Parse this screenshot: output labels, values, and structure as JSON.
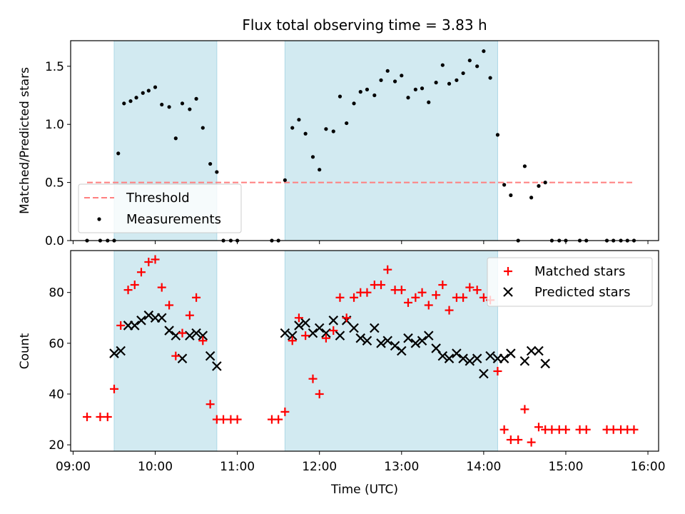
{
  "chart_data": [
    {
      "type": "scatter",
      "title": "Flux total observing time = 3.83 h",
      "ylabel": "Matched/Predicted stars",
      "xlabel": "",
      "xlim_hours": [
        8.97,
        16.13
      ],
      "ylim": [
        0,
        1.72
      ],
      "yticks": [
        0.0,
        0.5,
        1.0,
        1.5
      ],
      "ytick_labels": [
        "0.0",
        "0.5",
        "1.0",
        "1.5"
      ],
      "xtick_labels_shown": false,
      "shaded_intervals_hours": [
        [
          9.5,
          10.75
        ],
        [
          11.58,
          14.17
        ]
      ],
      "shade_color": "#add8e6",
      "legend": {
        "placement": "lower-left",
        "entries": [
          "Threshold",
          "Measurements"
        ]
      },
      "threshold": {
        "name": "Threshold",
        "value": 0.5,
        "x_start": 9.17,
        "x_end": 15.83,
        "color": "#ff7f7f",
        "style": "dashed"
      },
      "series": [
        {
          "name": "Measurements",
          "marker": "dot",
          "color": "#000000",
          "points": [
            [
              9.17,
              0
            ],
            [
              9.33,
              0
            ],
            [
              9.42,
              0
            ],
            [
              9.5,
              0
            ],
            [
              9.55,
              0.75
            ],
            [
              9.62,
              1.18
            ],
            [
              9.7,
              1.2
            ],
            [
              9.77,
              1.23
            ],
            [
              9.85,
              1.27
            ],
            [
              9.92,
              1.29
            ],
            [
              10.0,
              1.32
            ],
            [
              10.08,
              1.17
            ],
            [
              10.17,
              1.15
            ],
            [
              10.25,
              0.88
            ],
            [
              10.33,
              1.18
            ],
            [
              10.42,
              1.13
            ],
            [
              10.5,
              1.22
            ],
            [
              10.58,
              0.97
            ],
            [
              10.67,
              0.66
            ],
            [
              10.75,
              0.59
            ],
            [
              10.83,
              0
            ],
            [
              10.92,
              0
            ],
            [
              11.0,
              0
            ],
            [
              11.42,
              0
            ],
            [
              11.5,
              0
            ],
            [
              11.58,
              0.52
            ],
            [
              11.67,
              0.97
            ],
            [
              11.75,
              1.04
            ],
            [
              11.83,
              0.92
            ],
            [
              11.92,
              0.72
            ],
            [
              12.0,
              0.61
            ],
            [
              12.08,
              0.96
            ],
            [
              12.17,
              0.94
            ],
            [
              12.25,
              1.24
            ],
            [
              12.33,
              1.01
            ],
            [
              12.42,
              1.18
            ],
            [
              12.5,
              1.28
            ],
            [
              12.58,
              1.3
            ],
            [
              12.67,
              1.25
            ],
            [
              12.75,
              1.38
            ],
            [
              12.83,
              1.46
            ],
            [
              12.92,
              1.37
            ],
            [
              13.0,
              1.42
            ],
            [
              13.08,
              1.23
            ],
            [
              13.17,
              1.3
            ],
            [
              13.25,
              1.31
            ],
            [
              13.33,
              1.19
            ],
            [
              13.42,
              1.36
            ],
            [
              13.5,
              1.51
            ],
            [
              13.58,
              1.35
            ],
            [
              13.67,
              1.38
            ],
            [
              13.75,
              1.44
            ],
            [
              13.83,
              1.55
            ],
            [
              13.92,
              1.5
            ],
            [
              14.0,
              1.63
            ],
            [
              14.08,
              1.4
            ],
            [
              14.17,
              0.91
            ],
            [
              14.25,
              0.48
            ],
            [
              14.33,
              0.39
            ],
            [
              14.42,
              0
            ],
            [
              14.5,
              0.64
            ],
            [
              14.58,
              0.37
            ],
            [
              14.67,
              0.47
            ],
            [
              14.75,
              0.5
            ],
            [
              14.83,
              0
            ],
            [
              14.92,
              0
            ],
            [
              15.0,
              0
            ],
            [
              15.17,
              0
            ],
            [
              15.25,
              0
            ],
            [
              15.5,
              0
            ],
            [
              15.58,
              0
            ],
            [
              15.67,
              0
            ],
            [
              15.75,
              0
            ],
            [
              15.83,
              0
            ]
          ]
        }
      ]
    },
    {
      "type": "scatter",
      "title": "",
      "ylabel": "Count",
      "xlabel": "Time (UTC)",
      "xlim_hours": [
        8.97,
        16.13
      ],
      "ylim": [
        17.5,
        96.5
      ],
      "yticks": [
        20,
        40,
        60,
        80
      ],
      "ytick_labels": [
        "20",
        "40",
        "60",
        "80"
      ],
      "xticks_hours": [
        9,
        10,
        11,
        12,
        13,
        14,
        15,
        16
      ],
      "xtick_labels": [
        "09:00",
        "10:00",
        "11:00",
        "12:00",
        "13:00",
        "14:00",
        "15:00",
        "16:00"
      ],
      "shaded_intervals_hours": [
        [
          9.5,
          10.75
        ],
        [
          11.58,
          14.17
        ]
      ],
      "shade_color": "#add8e6",
      "legend": {
        "placement": "top-right",
        "entries": [
          "Matched stars",
          "Predicted stars"
        ]
      },
      "series": [
        {
          "name": "Matched stars",
          "marker": "plus",
          "color": "#ff0000",
          "points": [
            [
              9.17,
              31
            ],
            [
              9.33,
              31
            ],
            [
              9.42,
              31
            ],
            [
              9.5,
              42
            ],
            [
              9.58,
              67
            ],
            [
              9.67,
              81
            ],
            [
              9.75,
              83
            ],
            [
              9.83,
              88
            ],
            [
              9.92,
              92
            ],
            [
              10.0,
              93
            ],
            [
              10.08,
              82
            ],
            [
              10.17,
              75
            ],
            [
              10.25,
              55
            ],
            [
              10.33,
              64
            ],
            [
              10.42,
              71
            ],
            [
              10.5,
              78
            ],
            [
              10.58,
              61
            ],
            [
              10.67,
              36
            ],
            [
              10.75,
              30
            ],
            [
              10.83,
              30
            ],
            [
              10.92,
              30
            ],
            [
              11.0,
              30
            ],
            [
              11.42,
              30
            ],
            [
              11.5,
              30
            ],
            [
              11.58,
              33
            ],
            [
              11.67,
              61
            ],
            [
              11.75,
              70
            ],
            [
              11.83,
              63
            ],
            [
              11.92,
              46
            ],
            [
              12.0,
              40
            ],
            [
              12.08,
              62
            ],
            [
              12.17,
              65
            ],
            [
              12.25,
              78
            ],
            [
              12.33,
              70
            ],
            [
              12.42,
              78
            ],
            [
              12.5,
              80
            ],
            [
              12.58,
              80
            ],
            [
              12.67,
              83
            ],
            [
              12.75,
              83
            ],
            [
              12.83,
              89
            ],
            [
              12.92,
              81
            ],
            [
              13.0,
              81
            ],
            [
              13.08,
              76
            ],
            [
              13.17,
              78
            ],
            [
              13.25,
              80
            ],
            [
              13.33,
              75
            ],
            [
              13.42,
              79
            ],
            [
              13.5,
              83
            ],
            [
              13.58,
              73
            ],
            [
              13.67,
              78
            ],
            [
              13.75,
              78
            ],
            [
              13.83,
              82
            ],
            [
              13.92,
              81
            ],
            [
              14.0,
              78
            ],
            [
              14.08,
              77
            ],
            [
              14.17,
              49
            ],
            [
              14.25,
              26
            ],
            [
              14.33,
              22
            ],
            [
              14.42,
              22
            ],
            [
              14.5,
              34
            ],
            [
              14.58,
              21
            ],
            [
              14.67,
              27
            ],
            [
              14.75,
              26
            ],
            [
              14.83,
              26
            ],
            [
              14.92,
              26
            ],
            [
              15.0,
              26
            ],
            [
              15.17,
              26
            ],
            [
              15.25,
              26
            ],
            [
              15.5,
              26
            ],
            [
              15.58,
              26
            ],
            [
              15.67,
              26
            ],
            [
              15.75,
              26
            ],
            [
              15.83,
              26
            ]
          ]
        },
        {
          "name": "Predicted stars",
          "marker": "x",
          "color": "#000000",
          "points": [
            [
              9.5,
              56
            ],
            [
              9.58,
              57
            ],
            [
              9.67,
              67
            ],
            [
              9.75,
              67
            ],
            [
              9.83,
              69
            ],
            [
              9.92,
              71
            ],
            [
              10.0,
              70
            ],
            [
              10.08,
              70
            ],
            [
              10.17,
              65
            ],
            [
              10.25,
              63
            ],
            [
              10.33,
              54
            ],
            [
              10.42,
              63
            ],
            [
              10.5,
              64
            ],
            [
              10.58,
              63
            ],
            [
              10.67,
              55
            ],
            [
              10.75,
              51
            ],
            [
              11.58,
              64
            ],
            [
              11.67,
              63
            ],
            [
              11.75,
              67
            ],
            [
              11.83,
              68
            ],
            [
              11.92,
              64
            ],
            [
              12.0,
              66
            ],
            [
              12.08,
              64
            ],
            [
              12.17,
              69
            ],
            [
              12.25,
              63
            ],
            [
              12.33,
              69
            ],
            [
              12.42,
              66
            ],
            [
              12.5,
              62
            ],
            [
              12.58,
              61
            ],
            [
              12.67,
              66
            ],
            [
              12.75,
              60
            ],
            [
              12.83,
              61
            ],
            [
              12.92,
              59
            ],
            [
              13.0,
              57
            ],
            [
              13.08,
              62
            ],
            [
              13.17,
              60
            ],
            [
              13.25,
              61
            ],
            [
              13.33,
              63
            ],
            [
              13.42,
              58
            ],
            [
              13.5,
              55
            ],
            [
              13.58,
              54
            ],
            [
              13.67,
              56
            ],
            [
              13.75,
              54
            ],
            [
              13.83,
              53
            ],
            [
              13.92,
              54
            ],
            [
              14.0,
              48
            ],
            [
              14.08,
              55
            ],
            [
              14.17,
              54
            ],
            [
              14.25,
              54
            ],
            [
              14.33,
              56
            ],
            [
              14.5,
              53
            ],
            [
              14.58,
              57
            ],
            [
              14.67,
              57
            ],
            [
              14.75,
              52
            ]
          ]
        }
      ]
    }
  ]
}
